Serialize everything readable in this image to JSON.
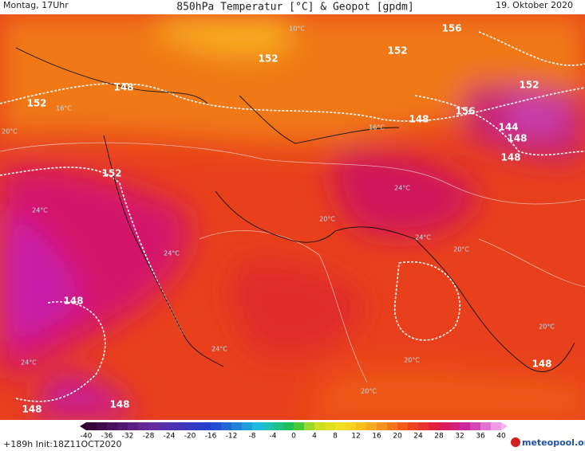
{
  "header": {
    "left": "Montag, 17Uhr",
    "title": "850hPa Temperatur [°C] & Geopot [gpdm]",
    "right": "19. Oktober 2020"
  },
  "map": {
    "contour_labels": [
      "156",
      "152",
      "152",
      "148",
      "152",
      "156",
      "152",
      "148",
      "144",
      "148",
      "148",
      "152",
      "148",
      "148",
      "148",
      "148"
    ],
    "temp_labels": [
      "10°C",
      "16°C",
      "16°C",
      "20°C",
      "24°C",
      "24°C",
      "24°C",
      "24°C",
      "20°C",
      "20°C",
      "24°C",
      "20°C",
      "20°C",
      "20°C",
      "24°C"
    ]
  },
  "colorbar": {
    "ticks": [
      -40,
      -36,
      -32,
      -28,
      -24,
      -20,
      -16,
      -12,
      -8,
      -4,
      0,
      4,
      8,
      12,
      16,
      20,
      24,
      28,
      32,
      36,
      40
    ]
  },
  "footer": {
    "init": "+189h Init:18Z11OCT2020",
    "logo": "meteopool.org"
  }
}
